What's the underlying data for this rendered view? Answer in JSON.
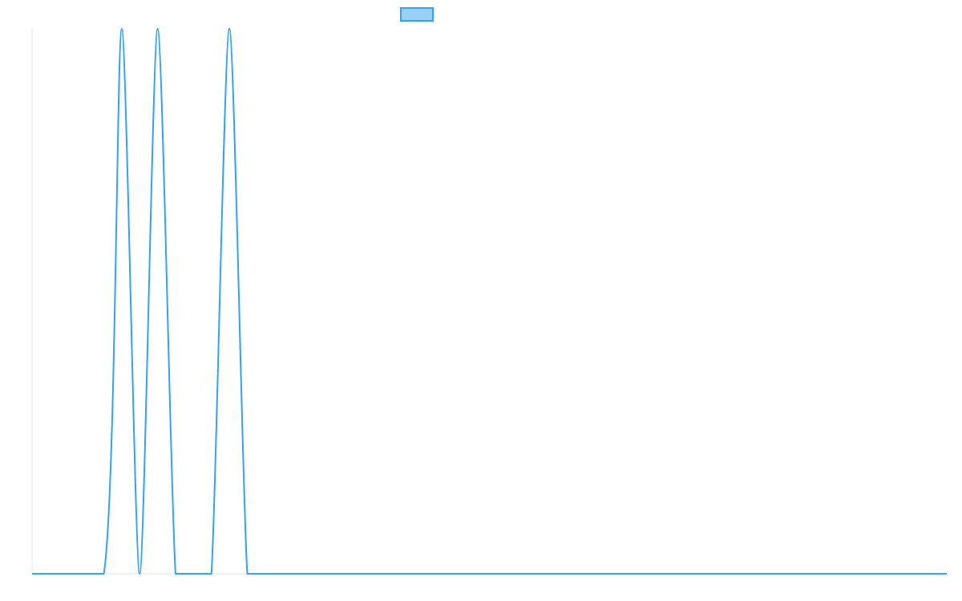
{
  "colors": {
    "series_line": "#36a2eb",
    "legend_fill": "#9ad0f5",
    "axis_line": "#e6e6e6",
    "background": "#ffffff"
  },
  "chart_data": {
    "type": "line",
    "title": "",
    "xlabel": "",
    "ylabel": "",
    "grid": false,
    "legend": {
      "position": "top",
      "entries": [
        {
          "name": "",
          "color": "#36a2eb",
          "fill": "#9ad0f5"
        }
      ]
    },
    "x": [
      0,
      4,
      5,
      6,
      7,
      8,
      9,
      10,
      11,
      12,
      13,
      14,
      15,
      16,
      17,
      18,
      51
    ],
    "xlim": [
      0,
      51
    ],
    "ylim": [
      0,
      1
    ],
    "series": [
      {
        "values": [
          0,
          0,
          1,
          0,
          1,
          0,
          0,
          0,
          1,
          0,
          0,
          0,
          0,
          0,
          0,
          0,
          0
        ]
      }
    ]
  }
}
